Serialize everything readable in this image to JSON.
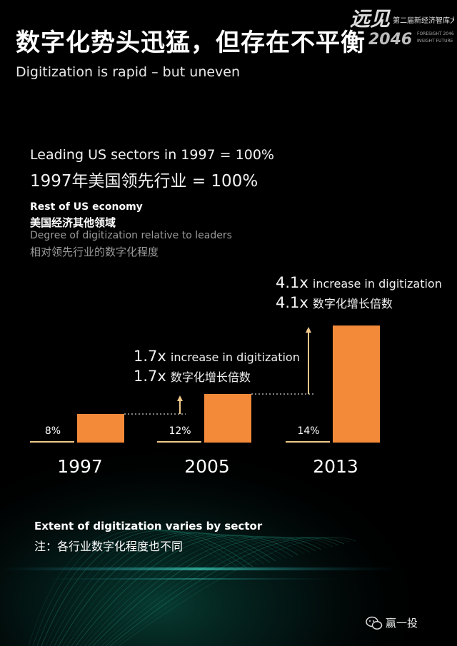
{
  "title": "数字化势头迅猛，但存在不平衡",
  "subtitle": "Digitization is rapid – but uneven",
  "logo": {
    "main": "远见",
    "number": "2046",
    "event": "第二届新经济智库大会",
    "tagline_1": "FORESIGHT 2046",
    "tagline_2": "INSIGHT FUTURE"
  },
  "legend": {
    "leaders_en": "Leading US sectors in 1997 = 100%",
    "leaders_cn": "1997年美国领先行业 = 100%",
    "rest_en": "Rest of US economy",
    "rest_cn": "美国经济其他领域",
    "degree_en": "Degree of digitization relative to leaders",
    "degree_cn": "相对领先行业的数字化程度"
  },
  "annotations": {
    "a2005": {
      "mult": "1.7x",
      "en": "increase in digitization",
      "cn": "数字化增长倍数"
    },
    "a2013": {
      "mult": "4.1x",
      "en": "increase in digitization",
      "cn": "数字化增长倍数"
    }
  },
  "chart_data": {
    "type": "bar",
    "categories": [
      "1997",
      "2005",
      "2013"
    ],
    "series": [
      {
        "name": "Leading US sectors",
        "values": [
          100,
          170,
          410
        ]
      },
      {
        "name": "Rest of US economy",
        "values": [
          8,
          12,
          14
        ]
      }
    ],
    "data_labels": [
      "8%",
      "12%",
      "14%"
    ],
    "colors": {
      "leaders": "#f28a3a",
      "rest": "#f0c88a",
      "text": "#ffffff"
    }
  },
  "footnote": {
    "en": "Extent of digitization varies by sector",
    "cn": "注：各行业数字化程度也不同"
  },
  "wechat": "赢一投"
}
